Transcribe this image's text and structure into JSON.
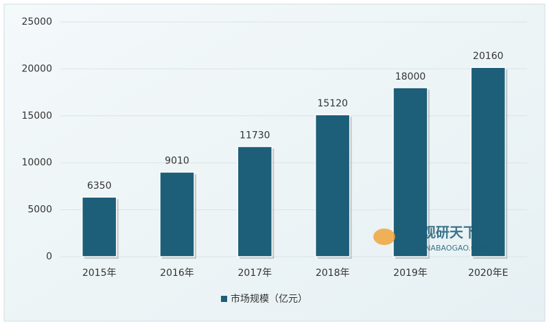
{
  "chart_data": {
    "type": "bar",
    "categories": [
      "2015年",
      "2016年",
      "2017年",
      "2018年",
      "2019年",
      "2020年E"
    ],
    "series": [
      {
        "name": "市场规模（亿元）",
        "color": "#1d5e78",
        "values": [
          6350,
          9010,
          11730,
          15120,
          18000,
          20160
        ]
      }
    ],
    "ylim": [
      0,
      25000
    ],
    "yticks": [
      0,
      5000,
      10000,
      15000,
      20000,
      25000
    ],
    "grid": true,
    "legend": "bottom",
    "annotations": [
      "观研天下",
      "CHINABAOGAO.COM"
    ]
  }
}
